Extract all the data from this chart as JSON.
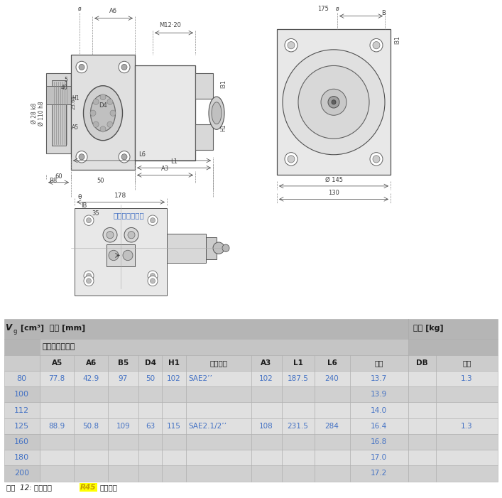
{
  "header_left": "Vₑ [cm³]  尺寸 [mm]",
  "header_right": "重量 [kg]",
  "subheader": "吸入和压力接口",
  "col_headers": [
    "A5",
    "A6",
    "B5",
    "D4",
    "H1",
    "法兰尺寸",
    "A3",
    "L1",
    "L6",
    "标准",
    "DB",
    "重量"
  ],
  "rows": [
    [
      "80",
      "77.8",
      "42.9",
      "97",
      "50",
      "102",
      "SAE2’’",
      "102",
      "187.5",
      "240",
      "13.7",
      "",
      "1.3"
    ],
    [
      "100",
      "",
      "",
      "",
      "",
      "",
      "",
      "",
      "",
      "",
      "13.9",
      "",
      ""
    ],
    [
      "112",
      "",
      "",
      "",
      "",
      "",
      "",
      "",
      "",
      "",
      "14.0",
      "",
      ""
    ],
    [
      "125",
      "88.9",
      "50.8",
      "109",
      "63",
      "115",
      "SAE2.1/2’’",
      "108",
      "231.5",
      "284",
      "16.4",
      "",
      "1.3"
    ],
    [
      "160",
      "",
      "",
      "",
      "",
      "",
      "",
      "",
      "",
      "",
      "16.8",
      "",
      ""
    ],
    [
      "180",
      "",
      "",
      "",
      "",
      "",
      "",
      "",
      "",
      "",
      "17.0",
      "",
      ""
    ],
    [
      "200",
      "",
      "",
      "",
      "",
      "",
      "",
      "",
      "",
      "",
      "17.2",
      "",
      ""
    ]
  ],
  "footer_prefix": "表格  12: 结构尺寸 ",
  "footer_highlight": "R45",
  "footer_suffix": " 的尺寸表",
  "bg_header": "#b5b5b5",
  "bg_subheader": "#c5c5c5",
  "bg_colheader": "#cccccc",
  "bg_row_light": "#e0e0e0",
  "bg_row_dark": "#d0d0d0",
  "bg_vg_light": "#d8d8d8",
  "bg_vg_dark": "#c8c8c8",
  "text_blue": "#4472c4",
  "text_black": "#1a1a1a",
  "text_highlight": "#c8a000",
  "line_color": "#606060",
  "dim_color": "#404040"
}
